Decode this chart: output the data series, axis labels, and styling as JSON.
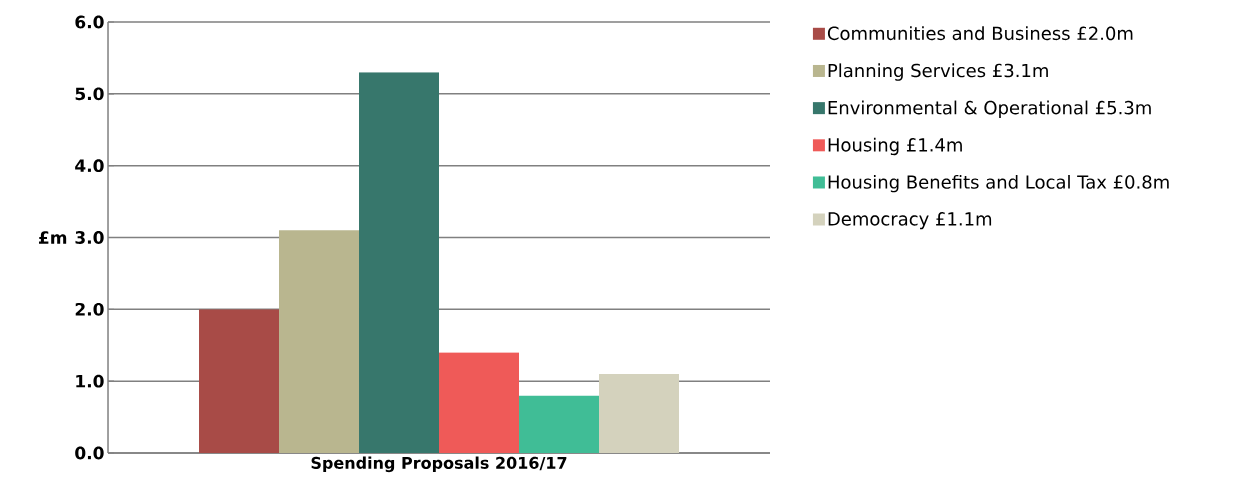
{
  "chart_data": {
    "type": "bar",
    "categories": [
      "Spending Proposals 2016/17"
    ],
    "ylabel": "£m",
    "series": [
      {
        "name": "Communities and Business £2.0m",
        "color": "#a84b47",
        "values": [
          2.0
        ]
      },
      {
        "name": "Planning Services £3.1m",
        "color": "#b9b68f",
        "values": [
          3.1
        ]
      },
      {
        "name": "Environmental & Operational £5.3m",
        "color": "#37776c",
        "values": [
          5.3
        ]
      },
      {
        "name": "Housing £1.4m",
        "color": "#ef5a58",
        "values": [
          1.4
        ]
      },
      {
        "name": "Housing Benefits and Local Tax £0.8m",
        "color": "#40bd96",
        "values": [
          0.8
        ]
      },
      {
        "name": "Democracy £1.1m",
        "color": "#d4d2bd",
        "values": [
          1.1
        ]
      }
    ],
    "ylim": [
      0,
      6
    ],
    "yticks": [
      {
        "value": 0,
        "label": "0.0"
      },
      {
        "value": 1,
        "label": "1.0"
      },
      {
        "value": 2,
        "label": "2.0"
      },
      {
        "value": 3,
        "label": "3.0"
      },
      {
        "value": 4,
        "label": "4.0"
      },
      {
        "value": 5,
        "label": "5.0"
      },
      {
        "value": 6,
        "label": "6.0"
      }
    ],
    "grid": "y",
    "legend": "right"
  }
}
